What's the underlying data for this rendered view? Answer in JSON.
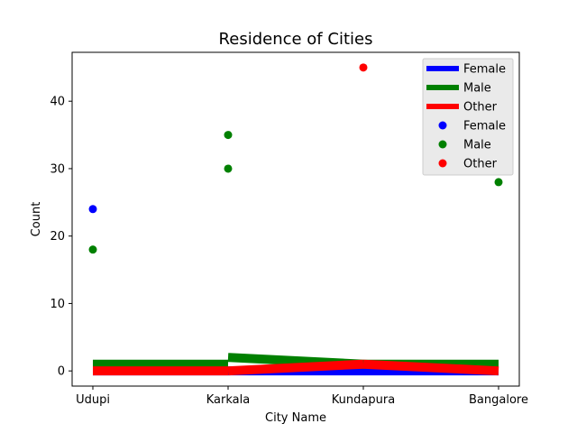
{
  "chart_data": {
    "type": "line",
    "title": "Residence of Cities",
    "xlabel": "City Name",
    "ylabel": "Count",
    "categories": [
      "Udupi",
      "Karkala",
      "Kundapura",
      "Bangalore"
    ],
    "yticks": [
      0,
      10,
      20,
      30,
      40
    ],
    "ylim": [
      -2.25,
      47.25
    ],
    "legend_position": "upper right",
    "line_series": [
      {
        "name": "Female",
        "color": "#0000ff",
        "segments": [
          [
            [
              0,
              0
            ],
            [
              1,
              0
            ]
          ],
          [
            [
              1,
              0
            ],
            [
              2,
              0
            ]
          ],
          [
            [
              2,
              0
            ],
            [
              3,
              0
            ]
          ]
        ]
      },
      {
        "name": "Male",
        "color": "#008000",
        "segments": [
          [
            [
              0,
              1
            ],
            [
              1,
              1
            ]
          ],
          [
            [
              1,
              2
            ],
            [
              2,
              1
            ]
          ],
          [
            [
              2,
              1
            ],
            [
              3,
              1
            ]
          ]
        ]
      },
      {
        "name": "Other",
        "color": "#ff0000",
        "segments": [
          [
            [
              0,
              0
            ],
            [
              1,
              0
            ]
          ],
          [
            [
              1,
              0
            ],
            [
              2,
              1
            ]
          ],
          [
            [
              2,
              1
            ],
            [
              3,
              0
            ]
          ]
        ]
      }
    ],
    "scatter_series": [
      {
        "name": "Female",
        "color": "#0000ff",
        "points": [
          [
            0,
            24
          ]
        ]
      },
      {
        "name": "Male",
        "color": "#008000",
        "points": [
          [
            0,
            18
          ],
          [
            1,
            35
          ],
          [
            1,
            30
          ],
          [
            3,
            28
          ]
        ]
      },
      {
        "name": "Other",
        "color": "#ff0000",
        "points": [
          [
            2,
            45
          ]
        ]
      }
    ]
  }
}
